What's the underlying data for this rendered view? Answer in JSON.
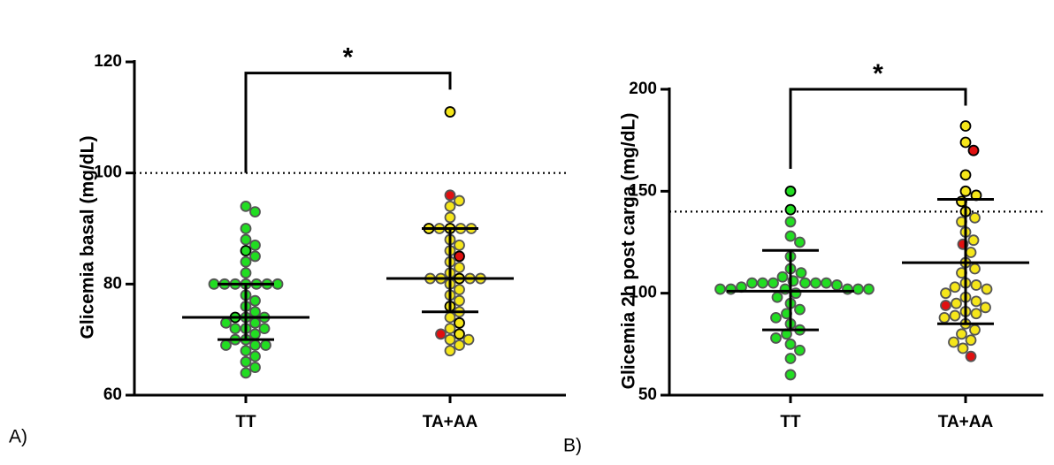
{
  "chart_data": [
    {
      "type": "dot_plot",
      "panel_label": "A)",
      "y_label": "Glicemia basal (mg/dL)",
      "categories": [
        "TT",
        "TA+AA"
      ],
      "ylim": [
        60,
        120
      ],
      "yticks": [
        60,
        80,
        100,
        120
      ],
      "reference_line": 100,
      "bracket": {
        "label": "*",
        "y": 118,
        "left_end": 100,
        "right_end": 115
      },
      "groups": [
        {
          "values": [
            94,
            93,
            90,
            88,
            87,
            86,
            85,
            84,
            82,
            80,
            80,
            80,
            80,
            80,
            80,
            80,
            78,
            77,
            76,
            75,
            74,
            74,
            74,
            73,
            73,
            72,
            72,
            72,
            71,
            70,
            70,
            69,
            69,
            69,
            68,
            67,
            66,
            65,
            64
          ],
          "colors": [
            "#22dd22",
            "#22dd22",
            "#22dd22",
            "#22dd22",
            "#22dd22",
            "#22dd22",
            "#22dd22",
            "#22dd22",
            "#22dd22",
            "#22dd22",
            "#22dd22",
            "#22dd22",
            "#22dd22",
            "#22dd22",
            "#22dd22",
            "#22dd22",
            "#22dd22",
            "#22dd22",
            "#22dd22",
            "#22dd22",
            "#22dd22",
            "#22dd22",
            "#22dd22",
            "#22dd22",
            "#22dd22",
            "#22dd22",
            "#22dd22",
            "#22dd22",
            "#22dd22",
            "#22dd22",
            "#22dd22",
            "#22dd22",
            "#22dd22",
            "#22dd22",
            "#22dd22",
            "#22dd22",
            "#22dd22",
            "#22dd22",
            "#22dd22"
          ],
          "edgecolors": [
            "#555555",
            "#555555",
            "#555555",
            "#555555",
            "#555555",
            "#000000",
            "#555555",
            "#555555",
            "#555555",
            "#555555",
            "#555555",
            "#555555",
            "#555555",
            "#555555",
            "#555555",
            "#555555",
            "#555555",
            "#555555",
            "#555555",
            "#555555",
            "#555555",
            "#000000",
            "#555555",
            "#555555",
            "#555555",
            "#555555",
            "#555555",
            "#555555",
            "#555555",
            "#555555",
            "#555555",
            "#555555",
            "#555555",
            "#555555",
            "#555555",
            "#555555",
            "#555555",
            "#555555",
            "#555555"
          ],
          "mean": 74,
          "upper": 80,
          "lower": 70
        },
        {
          "values": [
            111,
            96,
            95,
            94,
            92,
            90,
            90,
            90,
            90,
            90,
            88,
            87,
            86,
            85,
            84,
            83,
            82,
            81,
            81,
            81,
            81,
            81,
            80,
            79,
            78,
            77,
            76,
            75,
            74,
            73,
            72,
            71,
            71,
            70,
            70,
            69,
            68
          ],
          "colors": [
            "#f5e61a",
            "#e01010",
            "#f5e61a",
            "#f5e61a",
            "#f5e61a",
            "#f5e61a",
            "#f5e61a",
            "#f5e61a",
            "#f5e61a",
            "#f5e61a",
            "#f5e61a",
            "#f5e61a",
            "#f5e61a",
            "#e01010",
            "#f5e61a",
            "#f5e61a",
            "#f5e61a",
            "#f5e61a",
            "#f5e61a",
            "#f5e61a",
            "#f5e61a",
            "#f5e61a",
            "#f5e61a",
            "#f5e61a",
            "#f5e61a",
            "#f5e61a",
            "#f5e61a",
            "#f5e61a",
            "#f5e61a",
            "#f5e61a",
            "#f5e61a",
            "#f5e61a",
            "#e01010",
            "#f5e61a",
            "#f5e61a",
            "#f5e61a",
            "#f5e61a"
          ],
          "edgecolors": [
            "#000000",
            "#555555",
            "#555555",
            "#555555",
            "#555555",
            "#000000",
            "#555555",
            "#555555",
            "#555555",
            "#000000",
            "#555555",
            "#555555",
            "#555555",
            "#000000",
            "#555555",
            "#555555",
            "#555555",
            "#000000",
            "#555555",
            "#555555",
            "#555555",
            "#555555",
            "#555555",
            "#555555",
            "#555555",
            "#555555",
            "#000000",
            "#555555",
            "#555555",
            "#000000",
            "#555555",
            "#000000",
            "#555555",
            "#555555",
            "#555555",
            "#555555",
            "#555555"
          ],
          "mean": 81,
          "upper": 90,
          "lower": 75
        }
      ]
    },
    {
      "type": "dot_plot",
      "panel_label": "B)",
      "y_label": "Glicemia 2h post carga (mg/dL)",
      "categories": [
        "TT",
        "TA+AA"
      ],
      "ylim": [
        50,
        200
      ],
      "yticks": [
        50,
        100,
        150,
        200
      ],
      "reference_line": 140,
      "bracket": {
        "label": "*",
        "y": 200,
        "left_end": 161,
        "right_end": 192
      },
      "groups": [
        {
          "values": [
            150,
            141,
            135,
            128,
            125,
            118,
            112,
            110,
            108,
            106,
            105,
            105,
            105,
            105,
            105,
            105,
            104,
            103,
            102,
            102,
            102,
            102,
            102,
            102,
            100,
            98,
            95,
            92,
            90,
            88,
            85,
            82,
            80,
            78,
            75,
            72,
            68,
            60
          ],
          "colors": [
            "#22dd22",
            "#22dd22",
            "#22dd22",
            "#22dd22",
            "#22dd22",
            "#22dd22",
            "#22dd22",
            "#22dd22",
            "#22dd22",
            "#22dd22",
            "#22dd22",
            "#22dd22",
            "#22dd22",
            "#22dd22",
            "#22dd22",
            "#22dd22",
            "#22dd22",
            "#22dd22",
            "#22dd22",
            "#22dd22",
            "#22dd22",
            "#22dd22",
            "#22dd22",
            "#22dd22",
            "#22dd22",
            "#22dd22",
            "#22dd22",
            "#22dd22",
            "#22dd22",
            "#22dd22",
            "#22dd22",
            "#22dd22",
            "#22dd22",
            "#22dd22",
            "#22dd22",
            "#22dd22",
            "#22dd22",
            "#22dd22"
          ],
          "edgecolors": [
            "#000000",
            "#000000",
            "#555555",
            "#555555",
            "#555555",
            "#555555",
            "#555555",
            "#555555",
            "#555555",
            "#555555",
            "#555555",
            "#555555",
            "#555555",
            "#555555",
            "#555555",
            "#555555",
            "#555555",
            "#555555",
            "#555555",
            "#555555",
            "#555555",
            "#555555",
            "#555555",
            "#555555",
            "#555555",
            "#555555",
            "#555555",
            "#555555",
            "#555555",
            "#555555",
            "#555555",
            "#555555",
            "#555555",
            "#555555",
            "#555555",
            "#555555",
            "#555555",
            "#555555"
          ],
          "mean": 101,
          "upper": 121,
          "lower": 82
        },
        {
          "values": [
            182,
            174,
            170,
            158,
            150,
            148,
            145,
            140,
            137,
            135,
            130,
            126,
            124,
            120,
            115,
            112,
            110,
            105,
            104,
            103,
            102,
            100,
            98,
            96,
            95,
            94,
            93,
            91,
            90,
            89,
            88,
            85,
            82,
            80,
            77,
            76,
            73,
            69
          ],
          "colors": [
            "#f5e61a",
            "#f5e61a",
            "#e01010",
            "#f5e61a",
            "#f5e61a",
            "#f5e61a",
            "#f5e61a",
            "#f5e61a",
            "#f5e61a",
            "#f5e61a",
            "#f5e61a",
            "#f5e61a",
            "#e01010",
            "#f5e61a",
            "#f5e61a",
            "#f5e61a",
            "#f5e61a",
            "#f5e61a",
            "#f5e61a",
            "#f5e61a",
            "#f5e61a",
            "#f5e61a",
            "#f5e61a",
            "#f5e61a",
            "#f5e61a",
            "#e01010",
            "#f5e61a",
            "#f5e61a",
            "#f5e61a",
            "#f5e61a",
            "#f5e61a",
            "#f5e61a",
            "#f5e61a",
            "#f5e61a",
            "#f5e61a",
            "#f5e61a",
            "#f5e61a",
            "#e01010"
          ],
          "edgecolors": [
            "#000000",
            "#000000",
            "#000000",
            "#000000",
            "#000000",
            "#000000",
            "#000000",
            "#000000",
            "#555555",
            "#555555",
            "#555555",
            "#555555",
            "#555555",
            "#555555",
            "#555555",
            "#555555",
            "#555555",
            "#555555",
            "#555555",
            "#555555",
            "#555555",
            "#555555",
            "#555555",
            "#555555",
            "#555555",
            "#555555",
            "#555555",
            "#555555",
            "#555555",
            "#555555",
            "#555555",
            "#555555",
            "#555555",
            "#555555",
            "#555555",
            "#555555",
            "#555555",
            "#555555"
          ],
          "mean": 115,
          "upper": 146,
          "lower": 85
        }
      ]
    }
  ]
}
